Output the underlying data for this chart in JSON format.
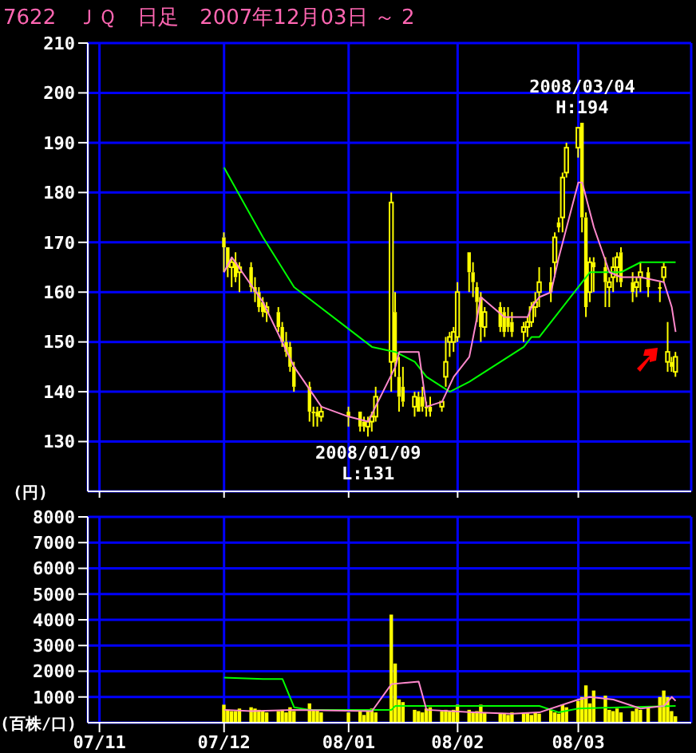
{
  "chart_data": [
    {
      "type": "candlestick",
      "title": "7622　ＪＱ　日足　2007年12月03日 ～ 2",
      "ylabel": "(円)",
      "color": "#ffff00",
      "x": [
        "2007-12-03",
        "2007-12-04",
        "2007-12-05",
        "2007-12-06",
        "2007-12-07",
        "2007-12-10",
        "2007-12-11",
        "2007-12-12",
        "2007-12-13",
        "2007-12-14",
        "2007-12-17",
        "2007-12-18",
        "2007-12-19",
        "2007-12-20",
        "2007-12-21",
        "2007-12-25",
        "2007-12-26",
        "2007-12-27",
        "2007-12-28",
        "2008-01-04",
        "2008-01-07",
        "2008-01-08",
        "2008-01-09",
        "2008-01-10",
        "2008-01-11",
        "2008-01-15",
        "2008-01-16",
        "2008-01-17",
        "2008-01-18",
        "2008-01-21",
        "2008-01-22",
        "2008-01-23",
        "2008-01-24",
        "2008-01-25",
        "2008-01-28",
        "2008-01-29",
        "2008-01-30",
        "2008-01-31",
        "2008-02-01",
        "2008-02-04",
        "2008-02-05",
        "2008-02-06",
        "2008-02-07",
        "2008-02-08",
        "2008-02-12",
        "2008-02-13",
        "2008-02-14",
        "2008-02-15",
        "2008-02-18",
        "2008-02-19",
        "2008-02-20",
        "2008-02-21",
        "2008-02-22",
        "2008-02-25",
        "2008-02-26",
        "2008-02-27",
        "2008-02-28",
        "2008-02-29",
        "2008-03-03",
        "2008-03-04",
        "2008-03-05",
        "2008-03-06",
        "2008-03-07",
        "2008-03-10",
        "2008-03-11",
        "2008-03-12",
        "2008-03-13",
        "2008-03-14",
        "2008-03-17",
        "2008-03-18",
        "2008-03-19",
        "2008-03-21",
        "2008-03-24",
        "2008-03-25",
        "2008-03-26",
        "2008-03-27",
        "2008-03-28"
      ],
      "ohlc": [
        [
          171,
          172,
          164,
          169
        ],
        [
          169,
          169,
          163,
          165
        ],
        [
          165,
          167,
          161,
          166
        ],
        [
          166,
          168,
          162,
          163
        ],
        [
          164,
          166,
          160,
          165
        ],
        [
          165,
          166,
          160,
          161
        ],
        [
          161,
          163,
          158,
          160
        ],
        [
          160,
          161,
          156,
          157
        ],
        [
          158,
          159,
          155,
          156
        ],
        [
          156,
          158,
          154,
          157
        ],
        [
          156,
          157,
          152,
          153
        ],
        [
          153,
          154,
          149,
          150
        ],
        [
          150,
          152,
          147,
          148
        ],
        [
          149,
          150,
          144,
          145
        ],
        [
          145,
          146,
          140,
          141
        ],
        [
          141,
          142,
          134,
          136
        ],
        [
          136,
          137,
          133,
          136
        ],
        [
          136,
          137,
          133,
          135
        ],
        [
          135,
          137,
          134,
          136
        ],
        [
          136,
          137,
          133,
          135
        ],
        [
          136,
          136,
          132,
          133
        ],
        [
          134,
          135,
          132,
          133
        ],
        [
          133,
          135,
          131,
          134
        ],
        [
          134,
          136,
          132,
          135
        ],
        [
          135,
          141,
          134,
          139
        ],
        [
          146,
          180,
          140,
          178
        ],
        [
          156,
          160,
          143,
          146
        ],
        [
          143,
          147,
          136,
          139
        ],
        [
          141,
          145,
          137,
          138
        ],
        [
          137,
          140,
          135,
          139
        ],
        [
          139,
          140,
          136,
          136
        ],
        [
          139,
          141,
          136,
          137
        ],
        [
          137,
          138,
          135,
          137
        ],
        [
          137,
          139,
          135,
          136
        ],
        [
          137,
          138,
          136,
          138
        ],
        [
          143,
          151,
          141,
          146
        ],
        [
          150,
          152,
          147,
          151
        ],
        [
          150,
          153,
          148,
          152
        ],
        [
          151,
          162,
          150,
          160
        ],
        [
          168,
          168,
          160,
          164
        ],
        [
          164,
          166,
          159,
          162
        ],
        [
          161,
          162,
          154,
          158
        ],
        [
          159,
          160,
          150,
          153
        ],
        [
          153,
          157,
          151,
          156
        ],
        [
          157,
          158,
          152,
          153
        ],
        [
          156,
          157,
          151,
          152
        ],
        [
          155,
          157,
          152,
          153
        ],
        [
          154,
          156,
          151,
          152
        ],
        [
          152,
          154,
          150,
          153
        ],
        [
          153,
          155,
          151,
          154
        ],
        [
          154,
          158,
          153,
          157
        ],
        [
          157,
          160,
          155,
          158
        ],
        [
          160,
          165,
          157,
          162
        ],
        [
          162,
          165,
          158,
          160
        ],
        [
          166,
          172,
          163,
          171
        ],
        [
          174,
          175,
          172,
          173
        ],
        [
          175,
          184,
          172,
          183
        ],
        [
          184,
          190,
          183,
          189
        ],
        [
          189,
          193,
          187,
          193
        ],
        [
          194,
          194,
          172,
          175
        ],
        [
          175,
          176,
          155,
          157
        ],
        [
          160,
          167,
          158,
          166
        ],
        [
          166,
          167,
          160,
          165
        ],
        [
          165,
          167,
          157,
          162
        ],
        [
          161,
          163,
          157,
          162
        ],
        [
          163,
          167,
          160,
          165
        ],
        [
          165,
          168,
          162,
          167
        ],
        [
          168,
          169,
          161,
          162
        ],
        [
          162,
          164,
          158,
          160
        ],
        [
          161,
          163,
          159,
          162
        ],
        [
          163,
          166,
          160,
          164
        ],
        [
          164,
          165,
          159,
          161
        ],
        [
          161,
          162,
          158,
          161
        ],
        [
          163,
          166,
          162,
          165
        ],
        [
          146,
          154,
          144,
          148
        ],
        [
          146,
          147,
          144,
          145
        ],
        [
          144,
          148,
          143,
          147
        ]
      ],
      "series": [
        {
          "type": "line",
          "color": "#00ff00",
          "x": [
            "2007-12-03",
            "2007-12-13",
            "2007-12-21",
            "2008-01-10",
            "2008-01-16",
            "2008-01-21",
            "2008-01-24",
            "2008-01-30",
            "2008-02-04",
            "2008-02-12",
            "2008-02-18",
            "2008-02-20",
            "2008-02-22",
            "2008-02-28",
            "2008-03-04",
            "2008-03-06",
            "2008-03-14",
            "2008-03-19",
            "2008-03-26",
            "2008-03-28"
          ],
          "values": [
            185,
            171,
            161,
            149,
            148,
            146,
            143,
            140,
            142,
            146,
            149,
            151,
            151,
            157,
            162,
            164,
            164,
            166,
            166,
            166
          ]
        },
        {
          "type": "line",
          "color": "#ff88cc",
          "x": [
            "2007-12-03",
            "2007-12-05",
            "2007-12-13",
            "2007-12-21",
            "2007-12-28",
            "2008-01-04",
            "2008-01-09",
            "2008-01-16",
            "2008-01-17",
            "2008-01-22",
            "2008-01-24",
            "2008-01-28",
            "2008-01-31",
            "2008-02-04",
            "2008-02-07",
            "2008-02-13",
            "2008-02-19",
            "2008-02-20",
            "2008-02-22",
            "2008-02-25",
            "2008-02-27",
            "2008-03-03",
            "2008-03-04",
            "2008-03-07",
            "2008-03-11",
            "2008-03-14",
            "2008-03-19",
            "2008-03-25",
            "2008-03-27",
            "2008-03-28"
          ],
          "values": [
            164,
            167,
            158,
            145,
            137,
            135,
            134,
            145,
            148,
            148,
            137,
            138,
            143,
            147,
            159,
            155,
            155,
            157,
            159,
            160,
            167,
            182,
            182,
            173,
            164,
            163,
            163,
            162,
            157,
            152
          ]
        }
      ],
      "annotations": [
        {
          "text": "2008/01/09\nL:131",
          "x": "2008-01-09",
          "y": 131
        },
        {
          "text": "2008/03/04\nH:194",
          "x": "2008-03-04",
          "y": 194
        }
      ],
      "xlim": [
        "2007-10-29",
        "2008-04-01"
      ],
      "xticks": [
        {
          "value": "2007-11-01",
          "label": null
        },
        {
          "value": "2007-12-03",
          "label": null
        },
        {
          "value": "2008-01-04",
          "label": null
        },
        {
          "value": "2008-02-01",
          "label": null
        },
        {
          "value": "2008-03-03",
          "label": null
        }
      ],
      "ylim": [
        120,
        210
      ],
      "yticks": [
        130,
        140,
        150,
        160,
        170,
        180,
        190,
        200,
        210
      ],
      "grid": true,
      "tick_labels": "y"
    },
    {
      "type": "bar",
      "ylabel": "(百株/口)",
      "color": "#ffff00",
      "x": [
        "2007-12-03",
        "2007-12-04",
        "2007-12-05",
        "2007-12-06",
        "2007-12-07",
        "2007-12-10",
        "2007-12-11",
        "2007-12-12",
        "2007-12-13",
        "2007-12-14",
        "2007-12-17",
        "2007-12-18",
        "2007-12-19",
        "2007-12-20",
        "2007-12-21",
        "2007-12-25",
        "2007-12-26",
        "2007-12-27",
        "2007-12-28",
        "2008-01-04",
        "2008-01-07",
        "2008-01-08",
        "2008-01-09",
        "2008-01-10",
        "2008-01-11",
        "2008-01-15",
        "2008-01-16",
        "2008-01-17",
        "2008-01-18",
        "2008-01-21",
        "2008-01-22",
        "2008-01-23",
        "2008-01-24",
        "2008-01-25",
        "2008-01-28",
        "2008-01-29",
        "2008-01-30",
        "2008-01-31",
        "2008-02-01",
        "2008-02-04",
        "2008-02-05",
        "2008-02-06",
        "2008-02-07",
        "2008-02-08",
        "2008-02-12",
        "2008-02-13",
        "2008-02-14",
        "2008-02-15",
        "2008-02-18",
        "2008-02-19",
        "2008-02-20",
        "2008-02-21",
        "2008-02-22",
        "2008-02-25",
        "2008-02-26",
        "2008-02-27",
        "2008-02-28",
        "2008-02-29",
        "2008-03-03",
        "2008-03-04",
        "2008-03-05",
        "2008-03-06",
        "2008-03-07",
        "2008-03-10",
        "2008-03-11",
        "2008-03-12",
        "2008-03-13",
        "2008-03-14",
        "2008-03-17",
        "2008-03-18",
        "2008-03-19",
        "2008-03-21",
        "2008-03-24",
        "2008-03-25",
        "2008-03-26",
        "2008-03-27",
        "2008-03-28"
      ],
      "values": [
        700,
        500,
        450,
        450,
        550,
        600,
        550,
        500,
        450,
        400,
        450,
        500,
        400,
        600,
        450,
        750,
        500,
        500,
        400,
        400,
        450,
        300,
        500,
        550,
        400,
        4200,
        2300,
        900,
        800,
        500,
        450,
        400,
        550,
        600,
        450,
        500,
        450,
        500,
        700,
        500,
        400,
        450,
        700,
        400,
        350,
        350,
        300,
        400,
        350,
        400,
        300,
        400,
        350,
        500,
        400,
        350,
        700,
        600,
        850,
        1000,
        1450,
        750,
        1250,
        1050,
        500,
        450,
        550,
        400,
        450,
        550,
        500,
        600,
        1000,
        1250,
        1000,
        450,
        250
      ],
      "series": [
        {
          "type": "line",
          "color": "#00ff00",
          "x": [
            "2007-12-03",
            "2007-12-13",
            "2007-12-18",
            "2007-12-21",
            "2007-12-25",
            "2008-01-15",
            "2008-01-16",
            "2008-02-15",
            "2008-02-22",
            "2008-02-27",
            "2008-03-03",
            "2008-03-14",
            "2008-03-28"
          ],
          "values": [
            1750,
            1700,
            1700,
            600,
            500,
            500,
            650,
            650,
            650,
            400,
            550,
            600,
            650
          ]
        },
        {
          "type": "line",
          "color": "#ff88cc",
          "x": [
            "2007-12-03",
            "2007-12-10",
            "2007-12-21",
            "2008-01-10",
            "2008-01-15",
            "2008-01-22",
            "2008-01-24",
            "2008-02-05",
            "2008-02-15",
            "2008-02-22",
            "2008-03-03",
            "2008-03-06",
            "2008-03-12",
            "2008-03-19",
            "2008-03-25",
            "2008-03-27",
            "2008-03-28"
          ],
          "values": [
            500,
            450,
            500,
            450,
            1500,
            1600,
            500,
            400,
            350,
            400,
            900,
            1000,
            900,
            550,
            650,
            1000,
            850
          ]
        }
      ],
      "xlim": [
        "2007-10-29",
        "2008-04-01"
      ],
      "xticks": [
        {
          "value": "2007-11-01",
          "label": "07/11"
        },
        {
          "value": "2007-12-03",
          "label": "07/12"
        },
        {
          "value": "2008-01-04",
          "label": "08/01"
        },
        {
          "value": "2008-02-01",
          "label": "08/02"
        },
        {
          "value": "2008-03-03",
          "label": "08/03"
        }
      ],
      "ylim": [
        0,
        8000
      ],
      "yticks": [
        1000,
        2000,
        3000,
        4000,
        5000,
        6000,
        7000,
        8000
      ],
      "grid": true
    }
  ]
}
